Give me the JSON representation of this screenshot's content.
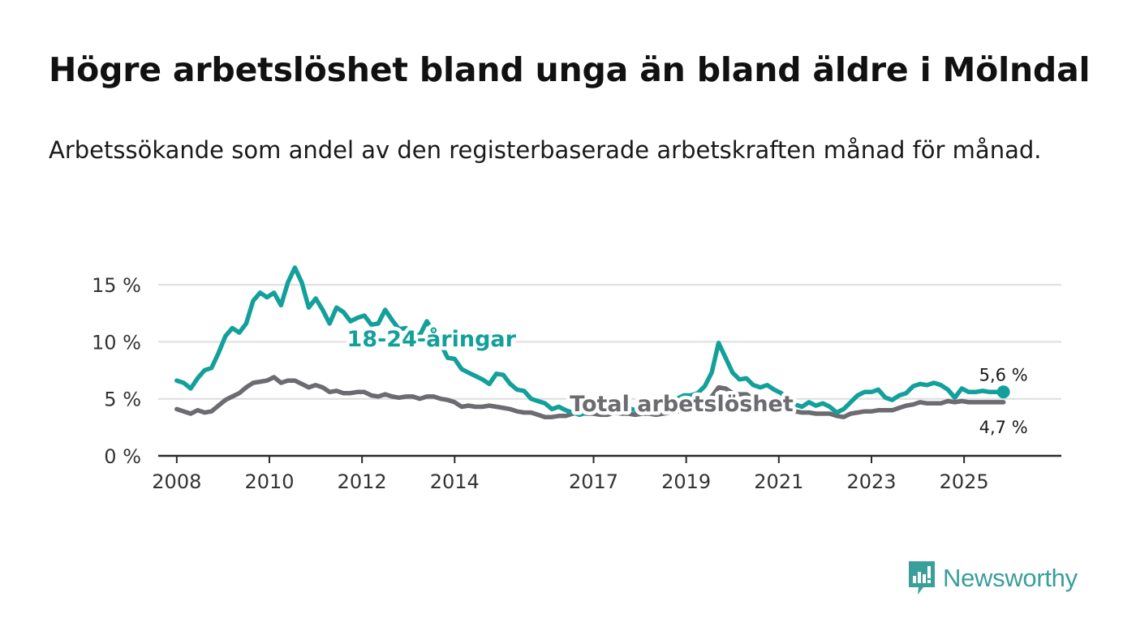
{
  "header": {
    "title": "Högre arbetslöshet bland unga än bland äldre i Mölndal",
    "subtitle": "Arbetssökande som andel av den registerbaserade arbetskraften månad för månad."
  },
  "brand": {
    "name": "Newsworthy",
    "icon": "newsworthy-logo-icon",
    "color": "#3a9e9a"
  },
  "chart_data": {
    "type": "line",
    "title": "Högre arbetslöshet bland unga än bland äldre i Mölndal",
    "subtitle": "Arbetssökande som andel av den registerbaserade arbetskraften månad för månad.",
    "xlabel": "",
    "ylabel": "",
    "xlim": [
      2007.6,
      2027.1
    ],
    "ylim": [
      0,
      16.5
    ],
    "y_ticks": [
      0,
      5,
      10,
      15
    ],
    "y_tick_labels": [
      "0 %",
      "5 %",
      "10 %",
      "15 %"
    ],
    "x_ticks": [
      2008,
      2010,
      2012,
      2014,
      2017,
      2019,
      2021,
      2023,
      2025
    ],
    "x_tick_labels": [
      "2008",
      "2010",
      "2012",
      "2014",
      "2017",
      "2019",
      "2021",
      "2023",
      "2025"
    ],
    "grid": true,
    "series": [
      {
        "name": "18-24-åringar",
        "color": "#13a09a",
        "x": [
          2008.0,
          2008.15,
          2008.3,
          2008.45,
          2008.6,
          2008.75,
          2008.9,
          2009.05,
          2009.2,
          2009.35,
          2009.5,
          2009.65,
          2009.8,
          2009.95,
          2010.1,
          2010.25,
          2010.4,
          2010.55,
          2010.7,
          2010.85,
          2011.0,
          2011.15,
          2011.3,
          2011.45,
          2011.6,
          2011.75,
          2011.9,
          2012.05,
          2012.2,
          2012.35,
          2012.5,
          2012.65,
          2012.8,
          2012.95,
          2013.1,
          2013.25,
          2013.4,
          2013.55,
          2013.7,
          2013.85,
          2014.0,
          2014.15,
          2014.3,
          2014.45,
          2014.6,
          2014.75,
          2014.9,
          2015.05,
          2015.2,
          2015.35,
          2015.5,
          2015.65,
          2015.8,
          2015.95,
          2016.1,
          2016.25,
          2016.4,
          2016.55,
          2016.7,
          2016.85,
          2017.0,
          2017.15,
          2017.3,
          2017.45,
          2017.6,
          2017.75,
          2017.9,
          2018.05,
          2018.2,
          2018.35,
          2018.5,
          2018.65,
          2018.8,
          2018.95,
          2019.1,
          2019.25,
          2019.4,
          2019.55,
          2019.7,
          2019.85,
          2020.0,
          2020.15,
          2020.3,
          2020.45,
          2020.6,
          2020.75,
          2020.9,
          2021.05,
          2021.2,
          2021.35,
          2021.5,
          2021.65,
          2021.8,
          2021.95,
          2022.1,
          2022.25,
          2022.4,
          2022.55,
          2022.7,
          2022.85,
          2023.0,
          2023.15,
          2023.3,
          2023.45,
          2023.6,
          2023.75,
          2023.9,
          2024.05,
          2024.2,
          2024.35,
          2024.5,
          2024.65,
          2024.8,
          2024.95,
          2025.1,
          2025.25,
          2025.4,
          2025.55,
          2025.7,
          2025.85
        ],
        "values": [
          6.6,
          6.4,
          5.9,
          6.8,
          7.5,
          7.7,
          9.0,
          10.5,
          11.2,
          10.8,
          11.6,
          13.6,
          14.3,
          13.9,
          14.3,
          13.2,
          15.2,
          16.5,
          15.2,
          13.0,
          13.8,
          12.8,
          11.6,
          13.0,
          12.6,
          11.8,
          12.1,
          12.3,
          11.5,
          11.6,
          12.8,
          11.9,
          11.1,
          11.2,
          10.6,
          10.6,
          11.8,
          10.8,
          9.8,
          8.6,
          8.5,
          7.6,
          7.3,
          7.0,
          6.7,
          6.3,
          7.2,
          7.1,
          6.3,
          5.8,
          5.7,
          5.0,
          4.8,
          4.6,
          4.1,
          4.3,
          4.0,
          3.8,
          3.6,
          3.8,
          4.0,
          3.9,
          3.9,
          4.3,
          4.4,
          4.2,
          4.0,
          4.4,
          4.4,
          4.3,
          4.7,
          4.8,
          5.0,
          5.3,
          5.3,
          5.5,
          6.1,
          7.3,
          9.9,
          8.6,
          7.3,
          6.7,
          6.8,
          6.2,
          6.0,
          6.2,
          5.8,
          5.5,
          5.0,
          4.5,
          4.3,
          4.7,
          4.4,
          4.6,
          4.3,
          3.8,
          4.1,
          4.7,
          5.3,
          5.6,
          5.6,
          5.8,
          5.1,
          4.9,
          5.3,
          5.5,
          6.1,
          6.3,
          6.2,
          6.4,
          6.2,
          5.8,
          5.1,
          5.9,
          5.6,
          5.6,
          5.7,
          5.6,
          5.6,
          5.6
        ],
        "end_label": "5,6 %"
      },
      {
        "name": "Total arbetslöshet",
        "color": "#6b6b70",
        "x": [
          2008.0,
          2008.15,
          2008.3,
          2008.45,
          2008.6,
          2008.75,
          2008.9,
          2009.05,
          2009.2,
          2009.35,
          2009.5,
          2009.65,
          2009.8,
          2009.95,
          2010.1,
          2010.25,
          2010.4,
          2010.55,
          2010.7,
          2010.85,
          2011.0,
          2011.15,
          2011.3,
          2011.45,
          2011.6,
          2011.75,
          2011.9,
          2012.05,
          2012.2,
          2012.35,
          2012.5,
          2012.65,
          2012.8,
          2012.95,
          2013.1,
          2013.25,
          2013.4,
          2013.55,
          2013.7,
          2013.85,
          2014.0,
          2014.15,
          2014.3,
          2014.45,
          2014.6,
          2014.75,
          2014.9,
          2015.05,
          2015.2,
          2015.35,
          2015.5,
          2015.65,
          2015.8,
          2015.95,
          2016.1,
          2016.25,
          2016.4,
          2016.55,
          2016.7,
          2016.85,
          2017.0,
          2017.15,
          2017.3,
          2017.45,
          2017.6,
          2017.75,
          2017.9,
          2018.05,
          2018.2,
          2018.35,
          2018.5,
          2018.65,
          2018.8,
          2018.95,
          2019.1,
          2019.25,
          2019.4,
          2019.55,
          2019.7,
          2019.85,
          2020.0,
          2020.15,
          2020.3,
          2020.45,
          2020.6,
          2020.75,
          2020.9,
          2021.05,
          2021.2,
          2021.35,
          2021.5,
          2021.65,
          2021.8,
          2021.95,
          2022.1,
          2022.25,
          2022.4,
          2022.55,
          2022.7,
          2022.85,
          2023.0,
          2023.15,
          2023.3,
          2023.45,
          2023.6,
          2023.75,
          2023.9,
          2024.05,
          2024.2,
          2024.35,
          2024.5,
          2024.65,
          2024.8,
          2024.95,
          2025.1,
          2025.25,
          2025.4,
          2025.55,
          2025.7,
          2025.85
        ],
        "values": [
          4.1,
          3.9,
          3.7,
          4.0,
          3.8,
          3.9,
          4.4,
          4.9,
          5.2,
          5.5,
          6.0,
          6.4,
          6.5,
          6.6,
          6.9,
          6.4,
          6.6,
          6.6,
          6.3,
          6.0,
          6.2,
          6.0,
          5.6,
          5.7,
          5.5,
          5.5,
          5.6,
          5.6,
          5.3,
          5.2,
          5.4,
          5.2,
          5.1,
          5.2,
          5.2,
          5.0,
          5.2,
          5.2,
          5.0,
          4.9,
          4.7,
          4.3,
          4.4,
          4.3,
          4.3,
          4.4,
          4.3,
          4.2,
          4.1,
          3.9,
          3.8,
          3.8,
          3.6,
          3.4,
          3.4,
          3.5,
          3.5,
          3.7,
          3.8,
          3.7,
          3.7,
          3.6,
          3.6,
          3.8,
          3.7,
          3.7,
          3.6,
          3.7,
          3.7,
          3.6,
          3.7,
          3.8,
          3.9,
          4.0,
          3.9,
          4.1,
          4.6,
          5.2,
          6.0,
          5.9,
          5.5,
          5.4,
          5.4,
          5.0,
          4.8,
          4.6,
          4.4,
          4.2,
          4.0,
          3.9,
          3.8,
          3.8,
          3.7,
          3.7,
          3.7,
          3.5,
          3.4,
          3.7,
          3.8,
          3.9,
          3.9,
          4.0,
          4.0,
          4.0,
          4.2,
          4.4,
          4.5,
          4.7,
          4.6,
          4.6,
          4.6,
          4.8,
          4.7,
          4.8,
          4.7,
          4.7,
          4.7,
          4.7,
          4.7,
          4.7
        ],
        "end_label": "4,7 %"
      }
    ],
    "annotations": [
      {
        "text": "18-24-åringar",
        "series": "18-24-åringar",
        "x": 2013.5,
        "y": 9.6
      },
      {
        "text": "Total arbetslöshet",
        "series": "Total arbetslöshet",
        "x": 2018.9,
        "y": 3.9
      }
    ]
  }
}
